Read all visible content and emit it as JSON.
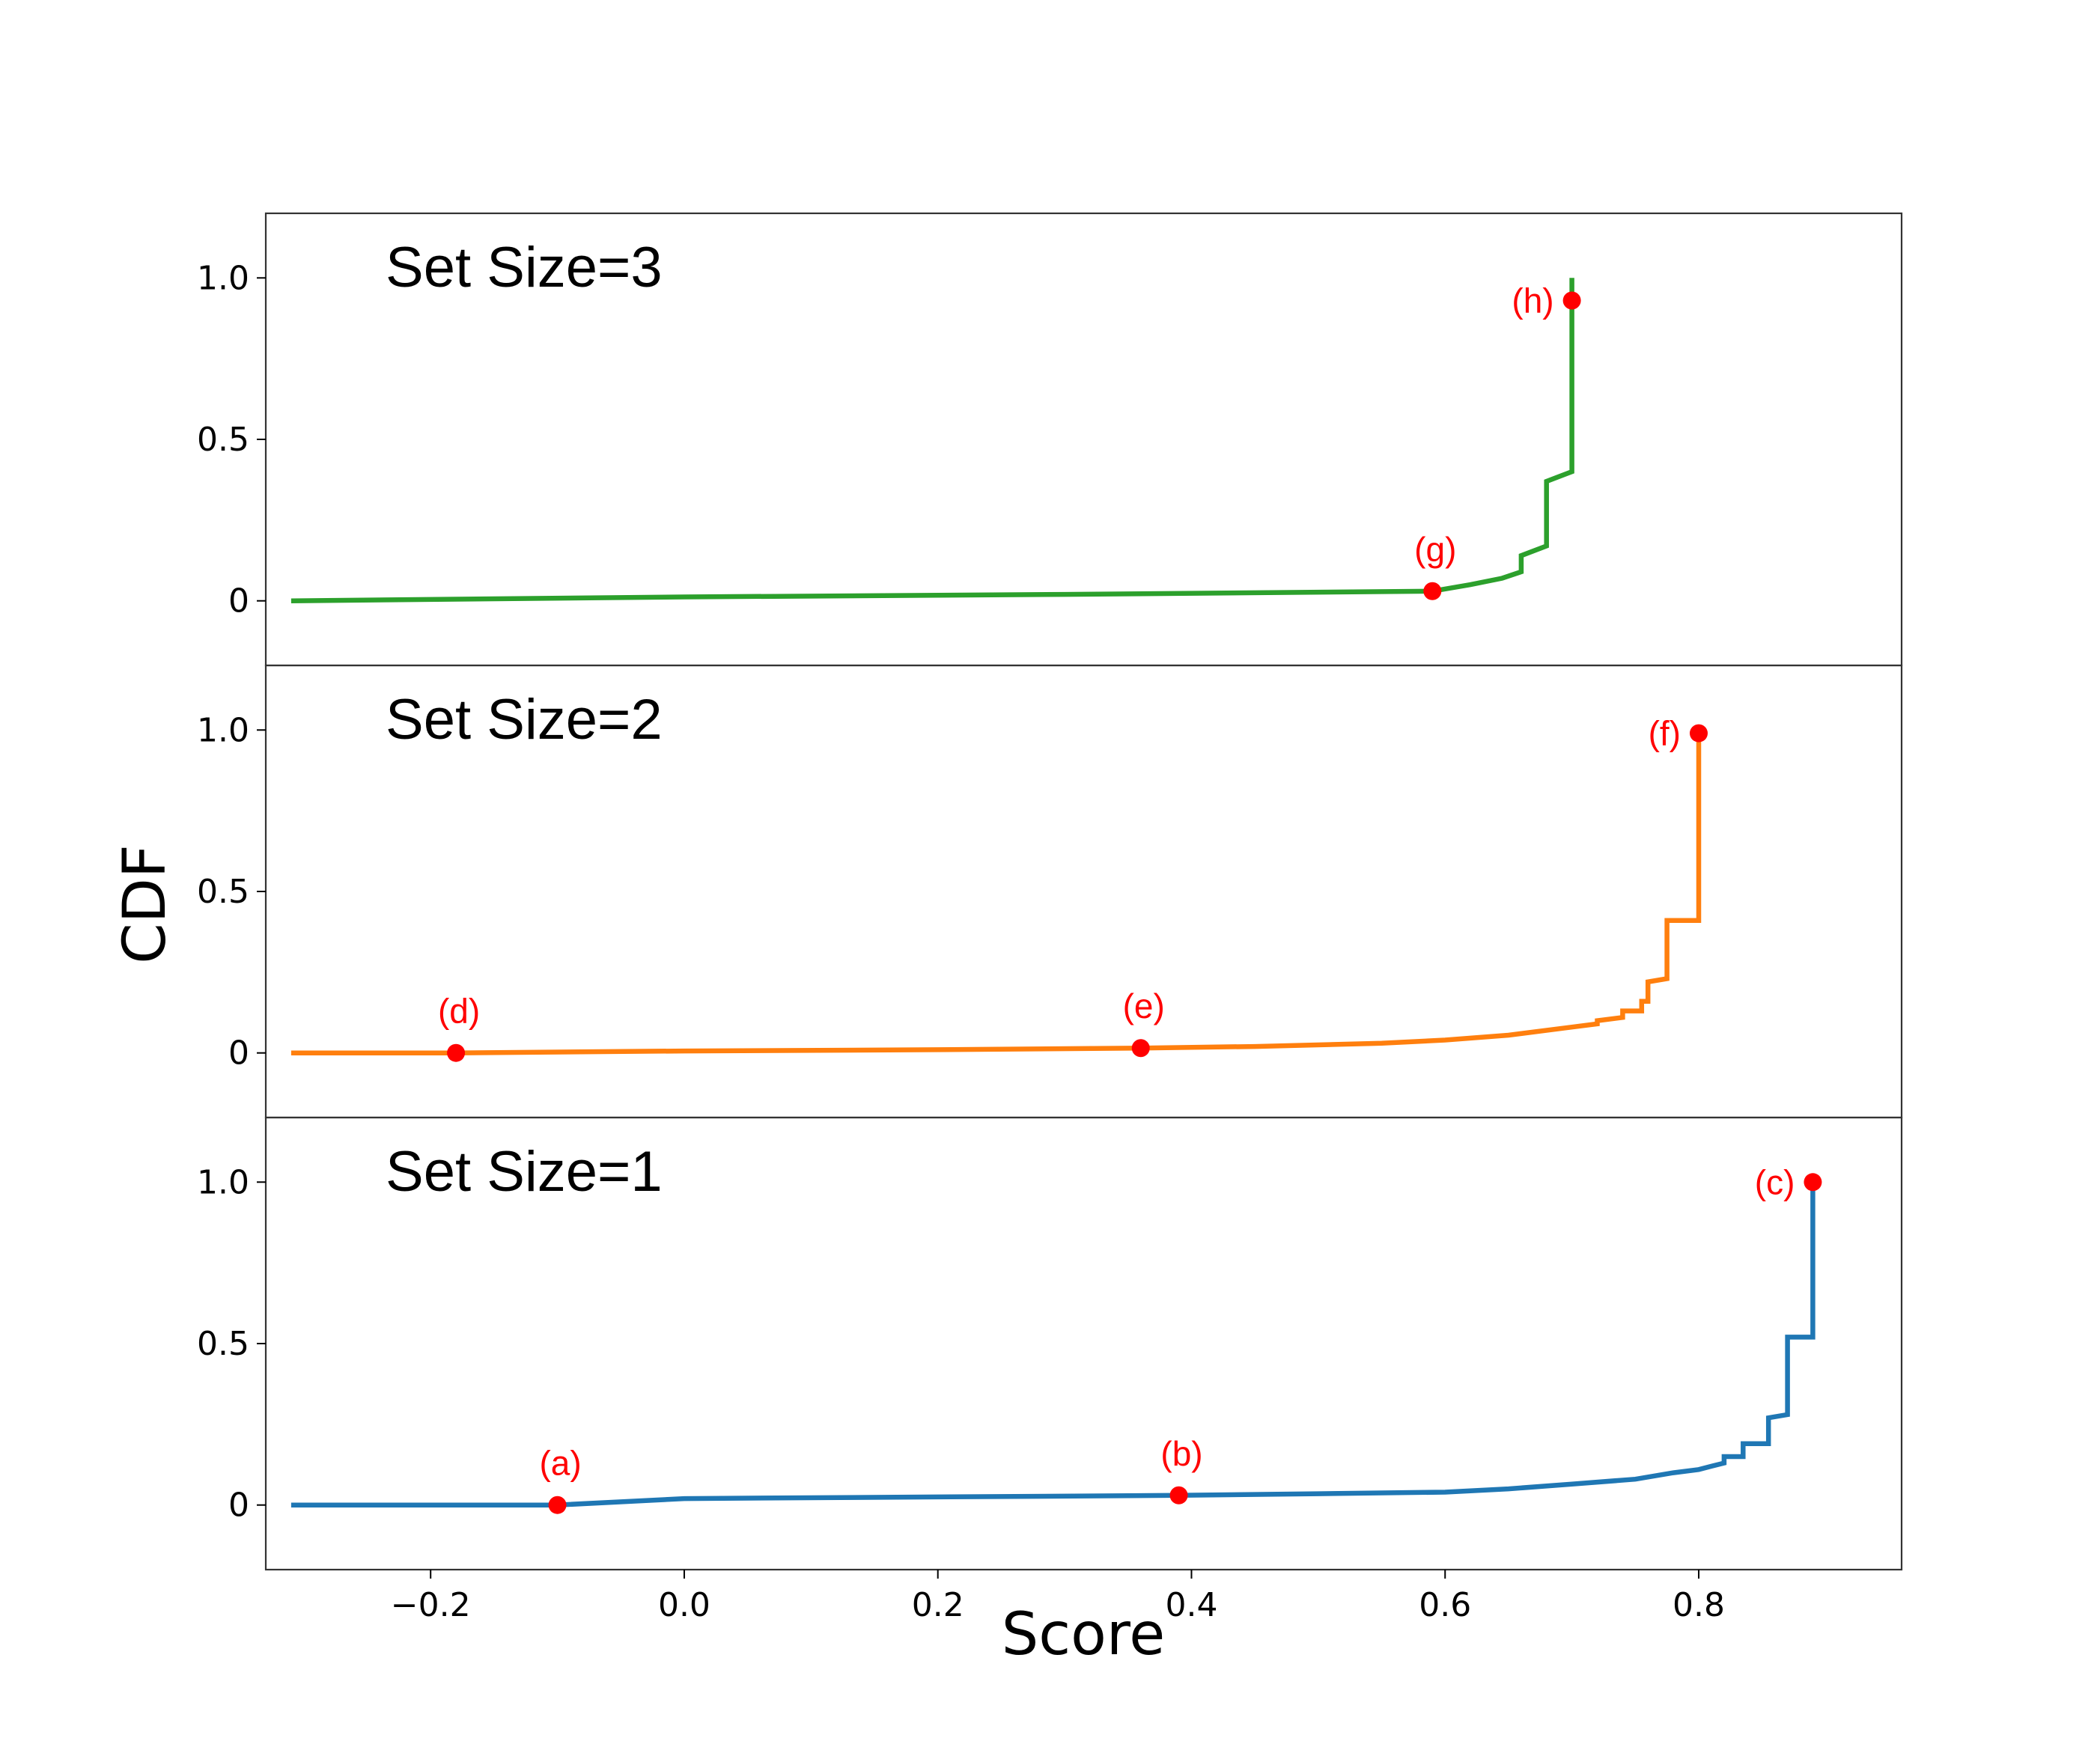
{
  "chart_data": {
    "type": "line",
    "xlabel": "Score",
    "ylabel": "CDF",
    "xlim": [
      -0.33,
      0.96
    ],
    "ylim": [
      -0.2,
      1.2
    ],
    "xticks": [
      {
        "value": -0.2,
        "label": "−0.2"
      },
      {
        "value": 0.0,
        "label": "0.0"
      },
      {
        "value": 0.2,
        "label": "0.2"
      },
      {
        "value": 0.4,
        "label": "0.4"
      },
      {
        "value": 0.6,
        "label": "0.6"
      },
      {
        "value": 0.8,
        "label": "0.8"
      }
    ],
    "yticks": [
      {
        "value": 0,
        "label": "0"
      },
      {
        "value": 0.5,
        "label": "0.5"
      },
      {
        "value": 1.0,
        "label": "1.0"
      }
    ],
    "marker_color": "#ff0000",
    "panels": [
      {
        "title": "Set Size=3",
        "color": "#2ca02c",
        "series": [
          [
            -0.31,
            0.0
          ],
          [
            0.0,
            0.012
          ],
          [
            0.3,
            0.02
          ],
          [
            0.59,
            0.03
          ],
          [
            0.62,
            0.05
          ],
          [
            0.645,
            0.07
          ],
          [
            0.66,
            0.09
          ],
          [
            0.66,
            0.14
          ],
          [
            0.68,
            0.17
          ],
          [
            0.68,
            0.37
          ],
          [
            0.7,
            0.4
          ],
          [
            0.7,
            1.0
          ]
        ],
        "points": [
          {
            "label": "(g)",
            "x": 0.59,
            "y": 0.03,
            "label_pos": "above"
          },
          {
            "label": "(h)",
            "x": 0.7,
            "y": 0.93,
            "label_pos": "left"
          }
        ]
      },
      {
        "title": "Set Size=2",
        "color": "#ff7f0e",
        "series": [
          [
            -0.31,
            0.0
          ],
          [
            -0.18,
            0.0
          ],
          [
            0.0,
            0.006
          ],
          [
            0.2,
            0.01
          ],
          [
            0.36,
            0.015
          ],
          [
            0.45,
            0.02
          ],
          [
            0.55,
            0.03
          ],
          [
            0.6,
            0.04
          ],
          [
            0.65,
            0.055
          ],
          [
            0.7,
            0.08
          ],
          [
            0.72,
            0.09
          ],
          [
            0.72,
            0.1
          ],
          [
            0.74,
            0.11
          ],
          [
            0.74,
            0.13
          ],
          [
            0.755,
            0.13
          ],
          [
            0.755,
            0.16
          ],
          [
            0.76,
            0.16
          ],
          [
            0.76,
            0.22
          ],
          [
            0.775,
            0.23
          ],
          [
            0.775,
            0.41
          ],
          [
            0.8,
            0.41
          ],
          [
            0.8,
            1.0
          ]
        ],
        "points": [
          {
            "label": "(d)",
            "x": -0.18,
            "y": 0.0,
            "label_pos": "above"
          },
          {
            "label": "(e)",
            "x": 0.36,
            "y": 0.015,
            "label_pos": "above"
          },
          {
            "label": "(f)",
            "x": 0.8,
            "y": 0.99,
            "label_pos": "left"
          }
        ]
      },
      {
        "title": "Set Size=1",
        "color": "#1f77b4",
        "series": [
          [
            -0.31,
            0.0
          ],
          [
            -0.1,
            0.0
          ],
          [
            0.0,
            0.02
          ],
          [
            0.2,
            0.025
          ],
          [
            0.39,
            0.03
          ],
          [
            0.5,
            0.035
          ],
          [
            0.6,
            0.04
          ],
          [
            0.65,
            0.05
          ],
          [
            0.7,
            0.065
          ],
          [
            0.75,
            0.08
          ],
          [
            0.78,
            0.1
          ],
          [
            0.8,
            0.11
          ],
          [
            0.81,
            0.12
          ],
          [
            0.82,
            0.13
          ],
          [
            0.82,
            0.15
          ],
          [
            0.835,
            0.15
          ],
          [
            0.835,
            0.19
          ],
          [
            0.855,
            0.19
          ],
          [
            0.855,
            0.27
          ],
          [
            0.87,
            0.28
          ],
          [
            0.87,
            0.52
          ],
          [
            0.89,
            0.52
          ],
          [
            0.89,
            1.0
          ]
        ],
        "points": [
          {
            "label": "(a)",
            "x": -0.1,
            "y": 0.0,
            "label_pos": "above"
          },
          {
            "label": "(b)",
            "x": 0.39,
            "y": 0.03,
            "label_pos": "above"
          },
          {
            "label": "(c)",
            "x": 0.89,
            "y": 1.0,
            "label_pos": "left"
          }
        ]
      }
    ]
  }
}
